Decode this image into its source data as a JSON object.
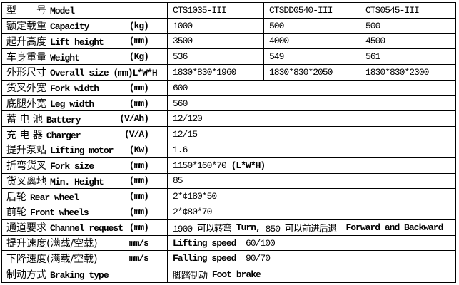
{
  "table": {
    "title_row": "型号 Model",
    "models": [
      "CTS1035-III",
      "CTSDD0540-III",
      "CTS0545-III"
    ],
    "rows": [
      {
        "cn": "型　　号",
        "en": "Model",
        "unit": "",
        "values": [
          "CTS1035-III",
          "CTSDD0540-III",
          "CTS0545-III"
        ]
      },
      {
        "cn": "额定载重",
        "en": "Capacity",
        "unit": "(kg)",
        "values": [
          "1000",
          "500",
          "500"
        ]
      },
      {
        "cn": "起升高度",
        "en": "Lift height",
        "unit": "(mm)",
        "values": [
          "3500",
          "4000",
          "4500"
        ]
      },
      {
        "cn": "车身重量",
        "en": "Weight",
        "unit": "(Kg)",
        "values": [
          "536",
          "549",
          "561"
        ]
      },
      {
        "cn": "外形尺寸",
        "en": "Overall size (mm)L*W*H",
        "unit": "",
        "values": [
          "1830*830*1960",
          "1830*830*2050",
          "1830*830*2300"
        ]
      },
      {
        "cn": "货叉外宽",
        "en": "Fork width",
        "unit": "(mm)",
        "segments": [
          {
            "t": "600",
            "b": false
          }
        ]
      },
      {
        "cn": "底腿外宽",
        "en": "Leg width",
        "unit": "(mm)",
        "segments": [
          {
            "t": "560",
            "b": false
          }
        ]
      },
      {
        "cn": "蓄 电 池",
        "en": "Battery",
        "unit": "(V/Ah)",
        "segments": [
          {
            "t": "12/120",
            "b": false
          }
        ]
      },
      {
        "cn": "充 电 器",
        "en": "Charger",
        "unit": "(V/A)",
        "segments": [
          {
            "t": "12/15",
            "b": false
          }
        ]
      },
      {
        "cn": "提升泵站",
        "en": "Lifting motor",
        "unit": "(Kw)",
        "segments": [
          {
            "t": "1.6",
            "b": false
          }
        ]
      },
      {
        "cn": "折弯货叉",
        "en": "Fork size",
        "unit": "(mm)",
        "segments": [
          {
            "t": "1150*160*70 ",
            "b": false
          },
          {
            "t": "(L*W*H)",
            "b": true
          }
        ]
      },
      {
        "cn": "货叉离地",
        "en": "Min. Height",
        "unit": "(mm)",
        "segments": [
          {
            "t": "85",
            "b": false
          }
        ]
      },
      {
        "cn": "后轮",
        "en": "Rear wheel",
        "unit": "(mm)",
        "segments": [
          {
            "t": "2*¢180*50",
            "b": false
          }
        ]
      },
      {
        "cn": "前轮",
        "en": "Front wheels",
        "unit": "(mm)",
        "segments": [
          {
            "t": "2*¢80*70",
            "b": false
          }
        ]
      },
      {
        "cn": "通道要求",
        "en": "Channel request",
        "unit": "(mm)",
        "segments": [
          {
            "t": "1900 可以转弯 ",
            "b": false
          },
          {
            "t": "Turn,",
            "b": true
          },
          {
            "t": " 850 可以前进后退  ",
            "b": false
          },
          {
            "t": "Forward and Backward",
            "b": true
          }
        ]
      },
      {
        "cn": "提升速度(满载/空载)",
        "en": "",
        "unit": "mm/s",
        "segments": [
          {
            "t": "Lifting speed",
            "b": true
          },
          {
            "t": "  60/100",
            "b": false
          }
        ]
      },
      {
        "cn": "下降速度(满载/空载)",
        "en": "",
        "unit": "mm/s",
        "segments": [
          {
            "t": "Falling speed",
            "b": true
          },
          {
            "t": "  90/70",
            "b": false
          }
        ]
      },
      {
        "cn": "制动方式",
        "en": "Braking type",
        "unit": "",
        "segments": [
          {
            "t": "脚踏制动 ",
            "b": false
          },
          {
            "t": "Foot brake",
            "b": true
          }
        ]
      }
    ],
    "colors": {
      "border": "#000000",
      "text": "#000000",
      "background": "#ffffff"
    }
  }
}
